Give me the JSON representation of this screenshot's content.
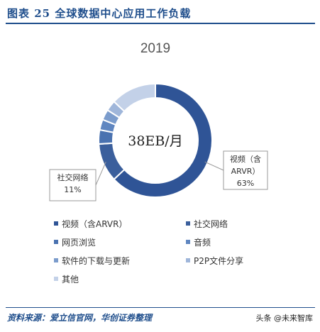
{
  "figure": {
    "title": "图表 25   全球数据中心应用工作负载",
    "source": "资料来源：爱立信官网，华创证券整理"
  },
  "watermark": {
    "text": "头条 @未来智库"
  },
  "chart_data": {
    "type": "pie",
    "donut": true,
    "title": "2019",
    "center_label": "38EB/月",
    "unit": "%",
    "legend_position": "bottom",
    "slices": [
      {
        "label": "视频（含ARVR）",
        "value": 63,
        "color": "#2f5496"
      },
      {
        "label": "社交网络",
        "value": 11,
        "color": "#3b5f9c"
      },
      {
        "label": "网页浏览",
        "value": 4,
        "color": "#4a72b0"
      },
      {
        "label": "音频",
        "value": 3,
        "color": "#5f86c0"
      },
      {
        "label": "软件的下载与更新",
        "value": 3,
        "color": "#7b9ccc"
      },
      {
        "label": "P2P文件分享",
        "value": 3,
        "color": "#9fb6da"
      },
      {
        "label": "其他",
        "value": 13,
        "color": "#c3d1e8"
      }
    ],
    "callouts": [
      {
        "slice": 0,
        "lines": [
          "视频（含",
          "ARVR）",
          "63%"
        ]
      },
      {
        "slice": 1,
        "lines": [
          "社交网络",
          "11%"
        ]
      }
    ]
  }
}
